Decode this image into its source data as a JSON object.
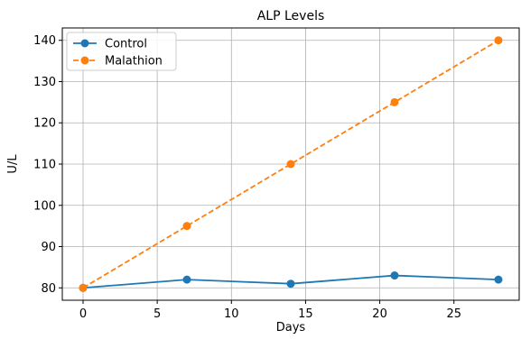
{
  "chart_data": {
    "type": "line",
    "title": "ALP Levels",
    "xlabel": "Days",
    "ylabel": "U/L",
    "x": [
      0,
      7,
      14,
      21,
      28
    ],
    "series": [
      {
        "name": "Control",
        "values": [
          80,
          82,
          81,
          83,
          82
        ],
        "color": "#1f77b4",
        "line_style": "solid",
        "marker": "circle"
      },
      {
        "name": "Malathion",
        "values": [
          80,
          95,
          110,
          125,
          140
        ],
        "color": "#ff7f0e",
        "line_style": "dashed",
        "marker": "circle"
      }
    ],
    "xlim": [
      -1.4,
      29.4
    ],
    "ylim": [
      77,
      143
    ],
    "xticks": [
      0,
      5,
      10,
      15,
      20,
      25
    ],
    "yticks": [
      80,
      90,
      100,
      110,
      120,
      130,
      140
    ],
    "grid": true,
    "legend_position": "top-left"
  }
}
